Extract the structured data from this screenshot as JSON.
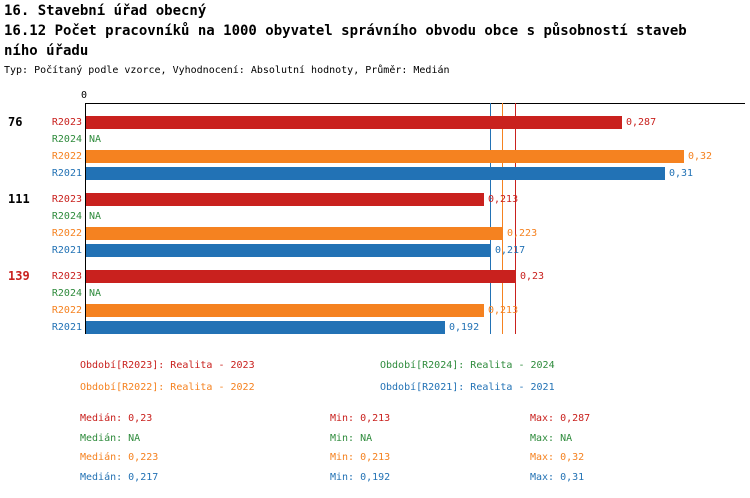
{
  "header": {
    "line1": "16. Stavební úřad obecný",
    "line2": "16.12 Počet pracovníků na 1000 obyvatel správního obvodu obce s působností staveb",
    "line3": "ního úřadu",
    "meta": "Typ: Počítaný podle vzorce, Vyhodnocení: Absolutní hodnoty, Průměr: Medián"
  },
  "chart_data": {
    "type": "bar",
    "orientation": "horizontal",
    "xlim": [
      0,
      0.35
    ],
    "axis_origin_label": "0",
    "grid": false,
    "series_order": [
      "R2023",
      "R2024",
      "R2022",
      "R2021"
    ],
    "series_colors": {
      "R2023": "#c9211e",
      "R2024": "#2e8b3c",
      "R2022": "#f58220",
      "R2021": "#2272b5"
    },
    "groups": [
      {
        "label": "76",
        "label_color": "#000000",
        "bars": [
          {
            "series": "R2023",
            "value": 0.287,
            "display": "0,287"
          },
          {
            "series": "R2024",
            "value": null,
            "display": "NA"
          },
          {
            "series": "R2022",
            "value": 0.32,
            "display": "0,32"
          },
          {
            "series": "R2021",
            "value": 0.31,
            "display": "0,31"
          }
        ]
      },
      {
        "label": "111",
        "label_color": "#000000",
        "bars": [
          {
            "series": "R2023",
            "value": 0.213,
            "display": "0,213"
          },
          {
            "series": "R2024",
            "value": null,
            "display": "NA"
          },
          {
            "series": "R2022",
            "value": 0.223,
            "display": "0,223"
          },
          {
            "series": "R2021",
            "value": 0.217,
            "display": "0,217"
          }
        ]
      },
      {
        "label": "139",
        "label_color": "#c9211e",
        "bars": [
          {
            "series": "R2023",
            "value": 0.23,
            "display": "0,23"
          },
          {
            "series": "R2024",
            "value": null,
            "display": "NA"
          },
          {
            "series": "R2022",
            "value": 0.213,
            "display": "0,213"
          },
          {
            "series": "R2021",
            "value": 0.192,
            "display": "0,192"
          }
        ]
      }
    ],
    "median_lines": [
      {
        "series": "R2021",
        "value": 0.217
      },
      {
        "series": "R2022",
        "value": 0.223
      },
      {
        "series": "R2023",
        "value": 0.23
      }
    ]
  },
  "legend": [
    {
      "series": "R2023",
      "label": "Období[R2023]: Realita - 2023"
    },
    {
      "series": "R2024",
      "label": "Období[R2024]: Realita - 2024"
    },
    {
      "series": "R2022",
      "label": "Období[R2022]: Realita - 2022"
    },
    {
      "series": "R2021",
      "label": "Období[R2021]: Realita - 2021"
    }
  ],
  "stats": [
    {
      "series": "R2023",
      "median": "Medián: 0,23",
      "min": "Min: 0,213",
      "max": "Max: 0,287"
    },
    {
      "series": "R2024",
      "median": "Medián: NA",
      "min": "Min: NA",
      "max": "Max: NA"
    },
    {
      "series": "R2022",
      "median": "Medián: 0,223",
      "min": "Min: 0,213",
      "max": "Max: 0,32"
    },
    {
      "series": "R2021",
      "median": "Medián: 0,217",
      "min": "Min: 0,192",
      "max": "Max: 0,31"
    }
  ]
}
